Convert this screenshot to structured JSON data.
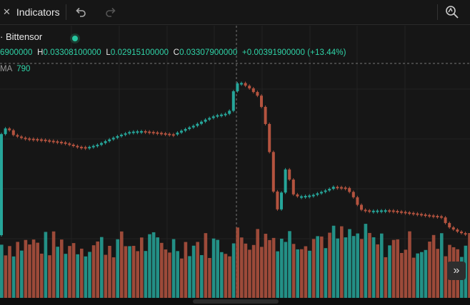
{
  "toolbar": {
    "indicators_label": "Indicators",
    "undo_icon": "undo-icon",
    "redo_icon": "redo-icon",
    "right_icon": "drawing-tools-icon"
  },
  "legend": {
    "symbol": "· Bittensor",
    "open_text": "6900000",
    "high_label": "H",
    "high_value": "0.03308100000",
    "low_label": "L",
    "low_value": "0.02915100000",
    "close_label": "C",
    "close_value": "0.03307900000",
    "change_value": "+0.00391900000 (+13.44%)",
    "ma_label": "MA",
    "ma_value": "790"
  },
  "colors": {
    "up": "#26a69a",
    "down": "#b4533f",
    "background": "#161616",
    "accent": "#2fd4a8"
  },
  "scroll_button_icon": "double-chevron-right-icon"
}
